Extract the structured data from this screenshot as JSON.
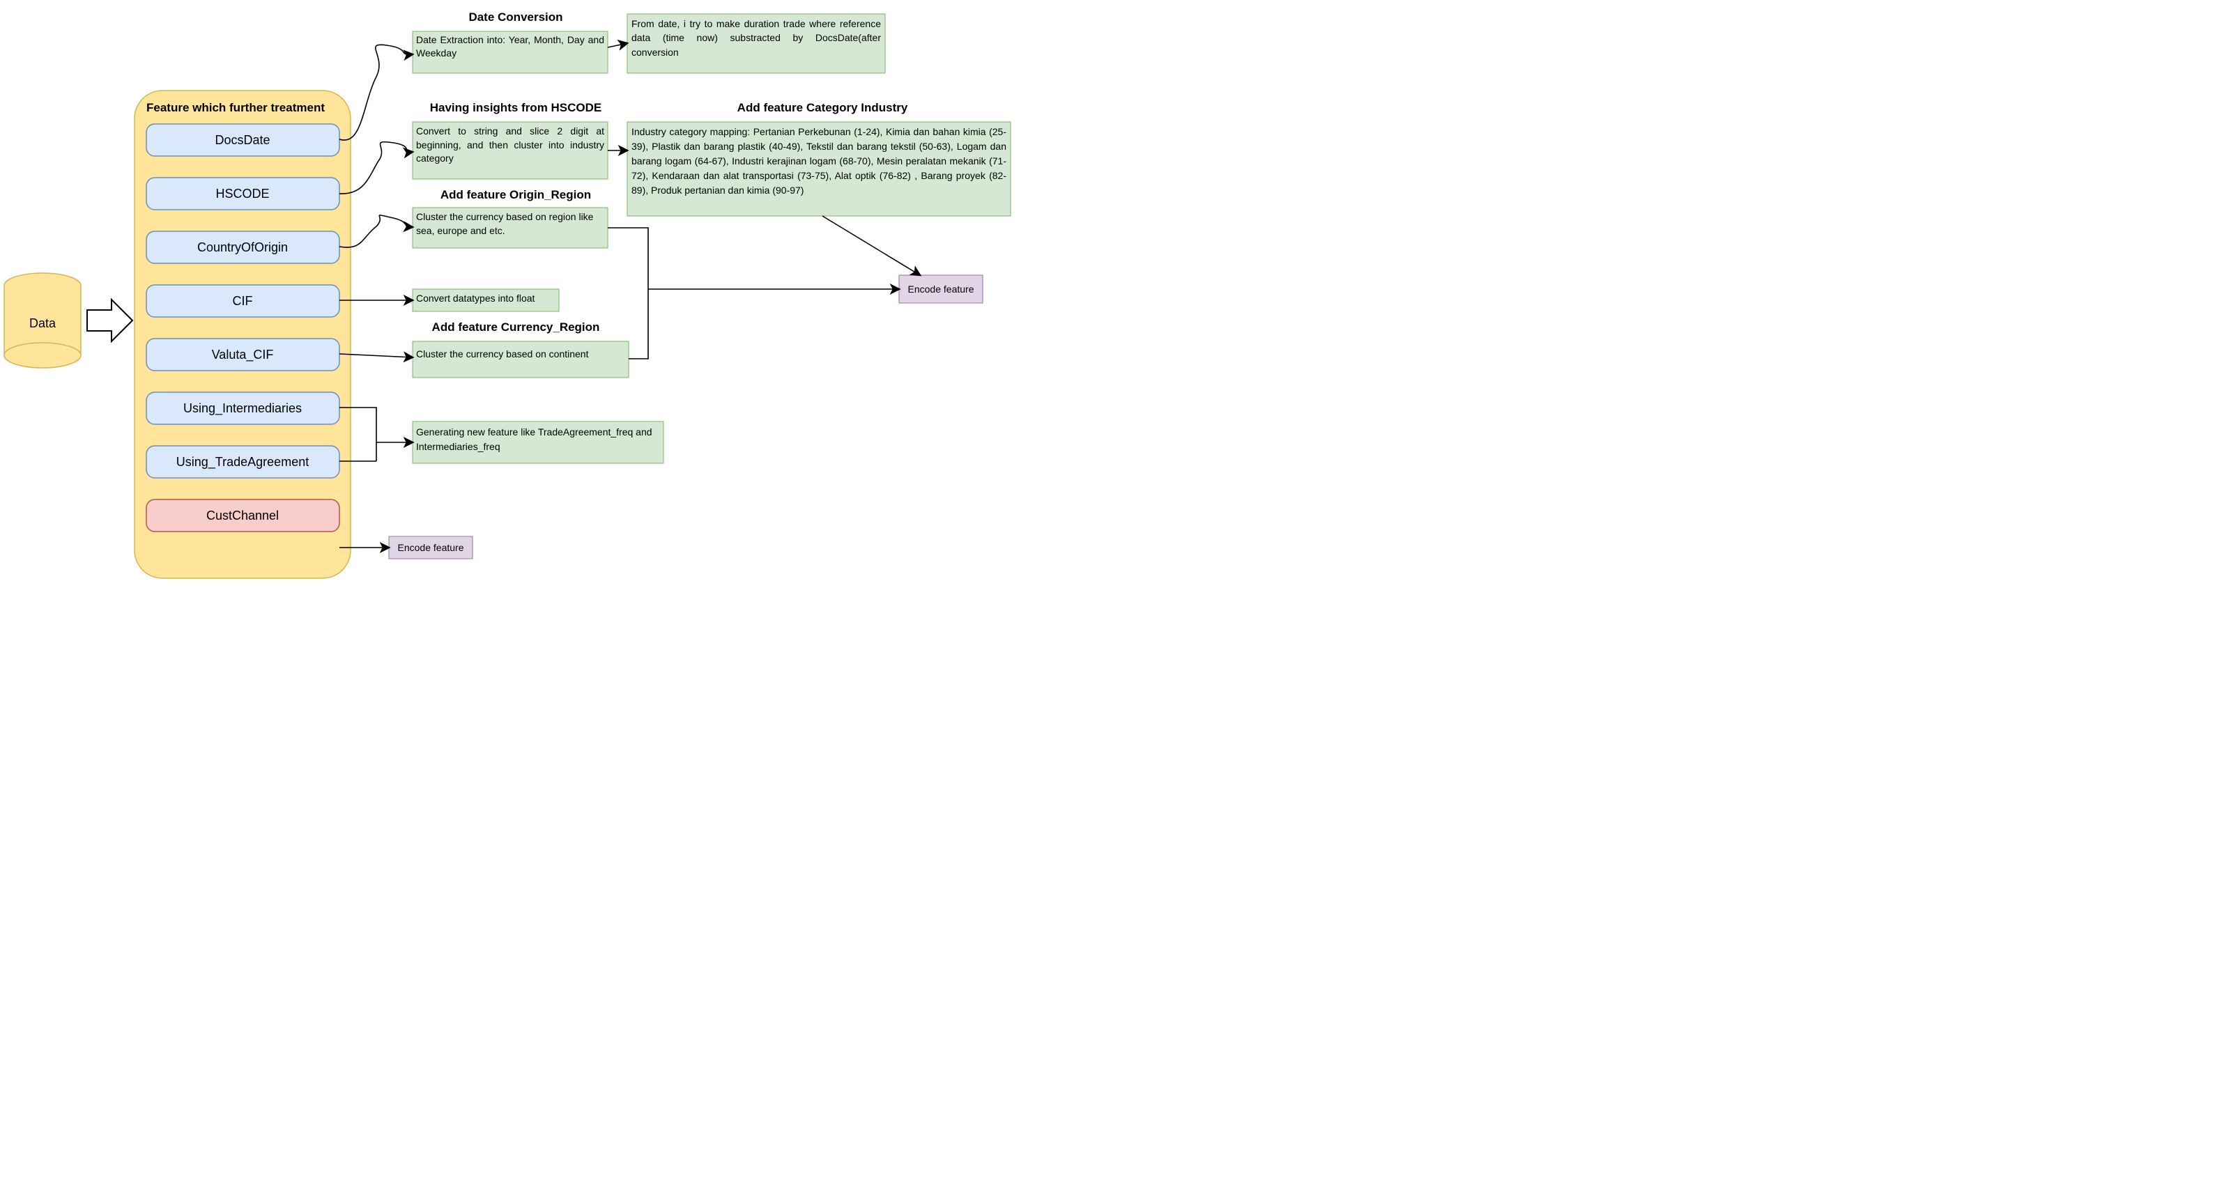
{
  "colors": {
    "yellowFill": "#ffe599",
    "yellowStroke": "#d6b656",
    "blueFill": "#dae8fc",
    "blueStroke": "#6c8ebf",
    "greenFill": "#d5e8d4",
    "greenStroke": "#82b366",
    "purpleFill": "#e1d5e7",
    "purpleStroke": "#9673a6",
    "redFill": "#f8cecc",
    "redStroke": "#b85450",
    "line": "#000000",
    "text": "#000000"
  },
  "dataCyl": {
    "label": "Data"
  },
  "features": {
    "title": "Feature which further treatment",
    "items": [
      "DocsDate",
      "HSCODE",
      "CountryOfOrigin",
      "CIF",
      "Valuta_CIF",
      "Using_Intermediaries",
      "Using_TradeAgreement",
      "CustChannel"
    ]
  },
  "sections": {
    "dateConv": {
      "title": "Date Conversion",
      "box1": "Date Extraction into: Year, Month, Day and Weekday",
      "box2": "From date, i try to make duration trade where reference data (time now) substracted by DocsDate(after conversion"
    },
    "hscode": {
      "title": "Having insights from HSCODE",
      "box": "Convert to string and slice 2 digit at beginning, and then cluster into industry category"
    },
    "catIndustry": {
      "title": "Add feature Category Industry",
      "box": "Industry category mapping: Pertanian Perkebunan (1-24), Kimia dan bahan kimia (25-39), Plastik dan barang plastik (40-49), Tekstil dan barang tekstil (50-63), Logam dan barang logam (64-67), Industri kerajinan logam (68-70), Mesin peralatan mekanik (71-72), Kendaraan dan alat transportasi (73-75), Alat optik (76-82) , Barang proyek (82-89), Produk pertanian dan kimia (90-97)"
    },
    "originRegion": {
      "title": "Add feature Origin_Region",
      "box": "Cluster the currency based on region like sea, europe and etc."
    },
    "cif": {
      "box": "Convert datatypes into float"
    },
    "currencyRegion": {
      "title": "Add feature Currency_Region",
      "box": "Cluster the currency based on continent"
    },
    "interTrade": {
      "box": "Generating new feature like TradeAgreement_freq and Intermediaries_freq"
    },
    "encode": {
      "label": "Encode feature"
    }
  }
}
